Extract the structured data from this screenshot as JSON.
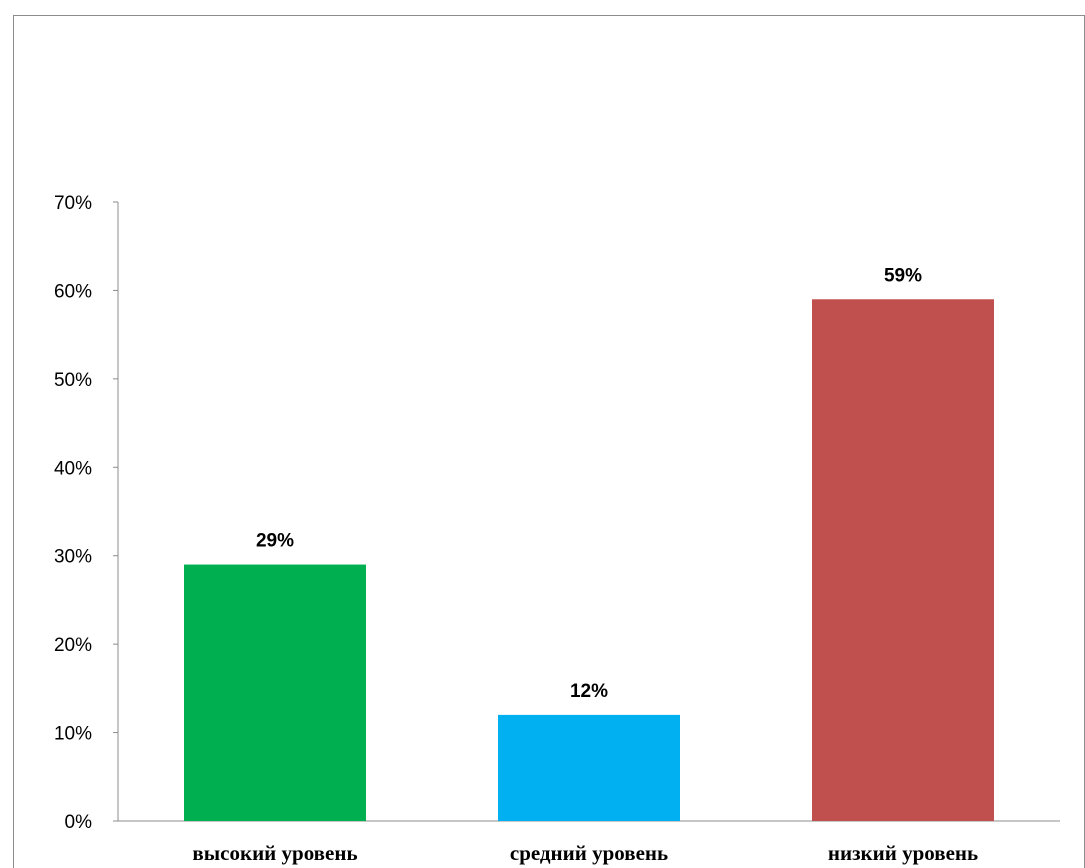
{
  "chart_data": {
    "type": "bar",
    "title": "",
    "xlabel": "",
    "ylabel": "",
    "categories": [
      "высокий уровень",
      "средний уровень",
      "низкий уровень"
    ],
    "values": [
      29,
      12,
      59
    ],
    "data_labels": [
      "29%",
      "12%",
      "59%"
    ],
    "colors": [
      "#00b050",
      "#00b0f0",
      "#c0504d"
    ],
    "ylim": [
      0,
      70
    ],
    "yticks": [
      0,
      10,
      20,
      30,
      40,
      50,
      60,
      70
    ],
    "ytick_labels": [
      "0%",
      "10%",
      "20%",
      "30%",
      "40%",
      "50%",
      "60%",
      "70%"
    ],
    "grid": false,
    "legend": "none"
  }
}
